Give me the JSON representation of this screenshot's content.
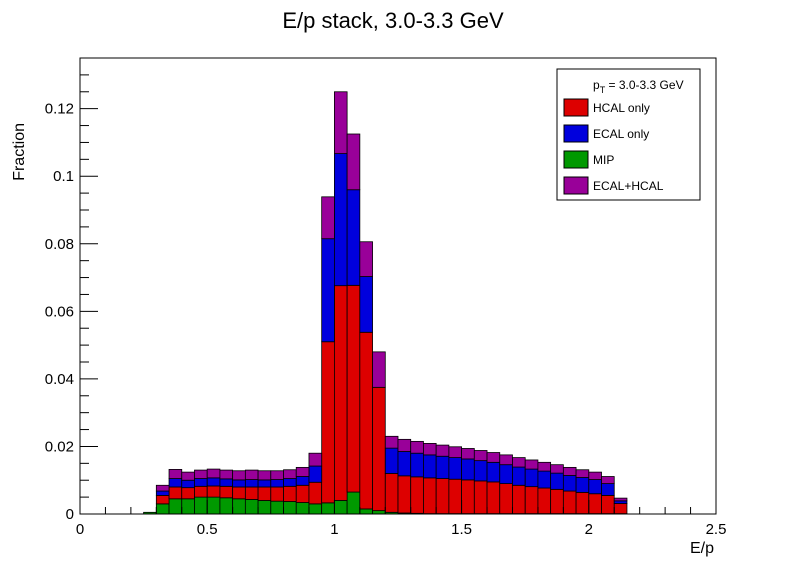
{
  "chart_data": {
    "type": "bar",
    "title": "E/p stack, 3.0-3.3 GeV",
    "xlabel": "E/p",
    "ylabel": "Fraction",
    "xlim": [
      0,
      2.5
    ],
    "ylim": [
      0,
      0.135
    ],
    "grid": false,
    "stacked": true,
    "bin_width": 0.05,
    "x_ticks": [
      0,
      0.5,
      1,
      1.5,
      2,
      2.5
    ],
    "x_tick_labels": [
      "0",
      "0.5",
      "1",
      "1.5",
      "2",
      "2.5"
    ],
    "y_ticks": [
      0,
      0.02,
      0.04,
      0.06,
      0.08,
      0.1,
      0.12
    ],
    "y_tick_labels": [
      "0",
      "0.02",
      "0.04",
      "0.06",
      "0.08",
      "0.1",
      "0.12"
    ],
    "legend": {
      "position": "top-right",
      "header_main": "p",
      "header_sub": "T",
      "header_rest": " = 3.0-3.3 GeV"
    },
    "bin_edges_start": 0.25,
    "series": [
      {
        "name": "MIP",
        "color": "#009900",
        "values": [
          0.0005,
          0.003,
          0.0045,
          0.0045,
          0.005,
          0.005,
          0.0048,
          0.0045,
          0.0043,
          0.004,
          0.0038,
          0.0037,
          0.0034,
          0.003,
          0.0033,
          0.004,
          0.0065,
          0.0015,
          0.001,
          0.0005,
          0.0003,
          0.0002,
          0.0001,
          0.0001,
          0.0001,
          0.0001,
          0.0001,
          0.0001,
          0.0001,
          0.0001,
          0.0001,
          0.0001,
          0.0001,
          0.0001,
          0.0001,
          0.0001,
          0.0001,
          0.0001
        ]
      },
      {
        "name": "HCAL only",
        "color": "#dd0000",
        "values": [
          0,
          0.0025,
          0.0035,
          0.0033,
          0.0032,
          0.0033,
          0.0034,
          0.0035,
          0.0037,
          0.004,
          0.0042,
          0.0045,
          0.0051,
          0.0064,
          0.0477,
          0.0636,
          0.0612,
          0.0523,
          0.0365,
          0.0115,
          0.011,
          0.0108,
          0.0106,
          0.0104,
          0.0102,
          0.01,
          0.0097,
          0.0094,
          0.0089,
          0.0084,
          0.008,
          0.0076,
          0.0072,
          0.0067,
          0.0063,
          0.0059,
          0.0054,
          0.003
        ]
      },
      {
        "name": "ECAL only",
        "color": "#0000dd",
        "values": [
          0,
          0.0013,
          0.0025,
          0.0022,
          0.0023,
          0.0024,
          0.0022,
          0.0021,
          0.0022,
          0.0021,
          0.0022,
          0.0023,
          0.0026,
          0.0048,
          0.0305,
          0.0391,
          0.0283,
          0.0165,
          0.0,
          0.0075,
          0.0072,
          0.007,
          0.0068,
          0.0066,
          0.0064,
          0.0062,
          0.006,
          0.0058,
          0.0056,
          0.0054,
          0.0052,
          0.005,
          0.0048,
          0.0046,
          0.0044,
          0.0042,
          0.0035,
          0.0008
        ]
      },
      {
        "name": "ECAL+HCAL",
        "color": "#990099",
        "values": [
          0,
          0.0017,
          0.0027,
          0.0024,
          0.0025,
          0.0026,
          0.0026,
          0.0027,
          0.0028,
          0.0027,
          0.0026,
          0.0026,
          0.0027,
          0.0038,
          0.0124,
          0.0183,
          0.0165,
          0.0103,
          0.0105,
          0.0035,
          0.0036,
          0.0035,
          0.0034,
          0.0033,
          0.0032,
          0.0031,
          0.003,
          0.0029,
          0.0029,
          0.0028,
          0.0027,
          0.0026,
          0.0025,
          0.0024,
          0.0023,
          0.0022,
          0.0021,
          0.0008
        ]
      }
    ]
  }
}
